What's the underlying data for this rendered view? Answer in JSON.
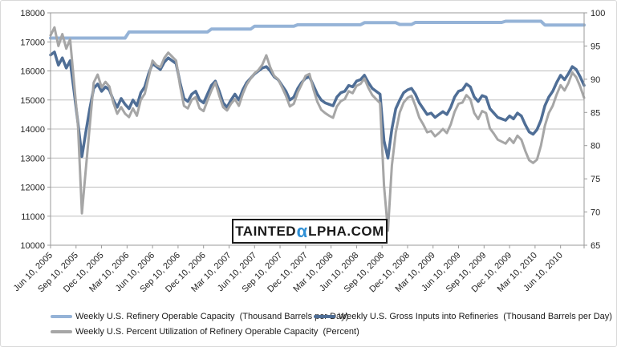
{
  "watermark": {
    "prefix": "TAINTED",
    "alpha": "α",
    "suffix": "LPHA.COM",
    "alpha_color": "#2e8fd5"
  },
  "colors": {
    "capacity_line": "#95b3d7",
    "inputs_line": "#4f6e96",
    "utilization_line": "#a6a6a6",
    "gridline": "#bdbdbd",
    "plot_border": "#9a9a9a",
    "axis_text": "#262626"
  },
  "chart_data": {
    "type": "line",
    "title": "",
    "grid": "horizontal",
    "legend_position": "bottom-left",
    "x_axis": {
      "start_date": "2005-06-10",
      "weeks_per_point": 2,
      "tick_every_weeks": 13,
      "tick_labels": [
        "Jun 10, 2005",
        "Sep 10, 2005",
        "Dec 10, 2005",
        "Mar 10, 2006",
        "Jun 10, 2006",
        "Sep 10, 2006",
        "Dec 10, 2006",
        "Mar 10, 2007",
        "Jun 10, 2007",
        "Sep 10, 2007",
        "Dec 10, 2007",
        "Mar 10, 2008",
        "Jun 10, 2008",
        "Sep 10, 2008",
        "Dec 10, 2008",
        "Mar 10, 2009",
        "Jun 10, 2009",
        "Sep 10, 2009",
        "Dec 10, 2009",
        "Mar 10, 2010",
        "Jun 10, 2010"
      ]
    },
    "left_axis": {
      "min": 10000,
      "max": 18000,
      "step": 1000,
      "tick_labels": [
        "18000",
        "17000",
        "16000",
        "15000",
        "14000",
        "13000",
        "12000",
        "11000",
        "10000"
      ]
    },
    "right_axis": {
      "min": 65,
      "max": 100,
      "step": 5,
      "tick_labels": [
        "100",
        "95",
        "90",
        "85",
        "80",
        "75",
        "70",
        "65"
      ]
    },
    "series": [
      {
        "name": "Weekly U.S. Refinery Operable Capacity  (Thousand Barrels per Day)",
        "axis": "left",
        "color": "#95b3d7",
        "stroke_width": 4,
        "values": [
          17130,
          17130,
          17130,
          17130,
          17130,
          17130,
          17130,
          17130,
          17130,
          17130,
          17130,
          17130,
          17130,
          17130,
          17130,
          17130,
          17130,
          17130,
          17130,
          17130,
          17340,
          17340,
          17340,
          17340,
          17340,
          17340,
          17340,
          17340,
          17340,
          17340,
          17340,
          17340,
          17340,
          17340,
          17340,
          17340,
          17340,
          17340,
          17340,
          17340,
          17340,
          17440,
          17440,
          17440,
          17440,
          17440,
          17440,
          17440,
          17440,
          17440,
          17440,
          17440,
          17540,
          17540,
          17540,
          17540,
          17540,
          17540,
          17540,
          17540,
          17540,
          17540,
          17540,
          17590,
          17590,
          17590,
          17590,
          17590,
          17590,
          17590,
          17590,
          17590,
          17590,
          17590,
          17590,
          17590,
          17590,
          17590,
          17590,
          17590,
          17660,
          17660,
          17660,
          17660,
          17660,
          17660,
          17660,
          17660,
          17660,
          17600,
          17600,
          17600,
          17600,
          17670,
          17670,
          17670,
          17670,
          17670,
          17670,
          17670,
          17670,
          17670,
          17670,
          17670,
          17670,
          17670,
          17670,
          17670,
          17670,
          17670,
          17670,
          17670,
          17670,
          17670,
          17670,
          17670,
          17710,
          17710,
          17710,
          17710,
          17710,
          17710,
          17710,
          17710,
          17710,
          17710,
          17580,
          17580,
          17580,
          17580,
          17580,
          17580,
          17580,
          17580,
          17580,
          17580,
          17580
        ]
      },
      {
        "name": "Weekly U.S. Gross Inputs into Refineries  (Thousand Barrels per Day)",
        "axis": "left",
        "color": "#4f6e96",
        "stroke_width": 3.5,
        "values": [
          16550,
          16650,
          16200,
          16450,
          16100,
          16350,
          15300,
          14200,
          13050,
          13900,
          14700,
          15400,
          15550,
          15300,
          15450,
          15350,
          15000,
          14750,
          15050,
          14850,
          14700,
          15000,
          14800,
          15250,
          15450,
          15900,
          16250,
          16150,
          16050,
          16300,
          16450,
          16350,
          16250,
          15600,
          15050,
          14950,
          15200,
          15300,
          15000,
          14900,
          15200,
          15500,
          15650,
          15300,
          14900,
          14750,
          15000,
          15200,
          15000,
          15350,
          15600,
          15750,
          15900,
          16000,
          16100,
          16150,
          16000,
          15800,
          15700,
          15500,
          15300,
          15000,
          15100,
          15400,
          15600,
          15750,
          15800,
          15500,
          15200,
          15000,
          14900,
          14850,
          14800,
          15100,
          15250,
          15300,
          15500,
          15450,
          15650,
          15700,
          15850,
          15600,
          15400,
          15300,
          15200,
          13600,
          13000,
          14000,
          14700,
          15000,
          15250,
          15350,
          15400,
          15200,
          14900,
          14700,
          14500,
          14550,
          14400,
          14500,
          14600,
          14500,
          14750,
          15100,
          15300,
          15350,
          15550,
          15450,
          15100,
          14950,
          15150,
          15100,
          14700,
          14550,
          14400,
          14350,
          14300,
          14450,
          14350,
          14550,
          14450,
          14150,
          13900,
          13820,
          13980,
          14300,
          14800,
          15100,
          15300,
          15600,
          15850,
          15700,
          15900,
          16150,
          16050,
          15800,
          15500
        ]
      },
      {
        "name": "Weekly U.S. Percent Utilization of Refinery Operable Capacity  (Percent)",
        "axis": "right",
        "color": "#a6a6a6",
        "stroke_width": 3,
        "values": [
          96.6,
          97.8,
          95.0,
          96.8,
          94.6,
          96.0,
          89.5,
          83.0,
          69.8,
          76.5,
          83.0,
          89.5,
          90.7,
          88.8,
          89.6,
          88.9,
          86.5,
          84.8,
          85.8,
          84.8,
          84.3,
          85.6,
          84.5,
          86.9,
          87.8,
          90.3,
          92.8,
          92.1,
          91.8,
          93.2,
          94.0,
          93.4,
          92.8,
          89.0,
          86.0,
          85.6,
          86.9,
          87.3,
          85.6,
          85.2,
          86.8,
          88.3,
          89.5,
          87.5,
          85.8,
          85.3,
          86.3,
          87.0,
          86.0,
          87.8,
          89.2,
          90.1,
          90.9,
          91.4,
          92.2,
          93.6,
          91.8,
          90.5,
          90.0,
          88.8,
          87.5,
          85.9,
          86.3,
          88.0,
          89.2,
          90.5,
          90.8,
          88.5,
          86.6,
          85.4,
          84.9,
          84.5,
          84.2,
          85.9,
          86.7,
          87.0,
          88.2,
          87.9,
          89.0,
          89.3,
          90.1,
          88.7,
          87.6,
          87.0,
          86.4,
          74.0,
          67.2,
          77.0,
          82.0,
          85.0,
          86.5,
          87.2,
          87.5,
          86.0,
          84.2,
          83.2,
          82.0,
          82.2,
          81.4,
          81.9,
          82.5,
          81.9,
          83.2,
          85.1,
          86.3,
          86.5,
          87.6,
          87.0,
          84.9,
          84.0,
          85.2,
          84.9,
          82.6,
          81.8,
          80.9,
          80.6,
          80.3,
          81.1,
          80.4,
          81.5,
          80.9,
          79.2,
          77.8,
          77.4,
          77.9,
          80.0,
          83.0,
          84.9,
          86.0,
          87.7,
          89.1,
          88.3,
          89.4,
          91.0,
          90.3,
          88.9,
          87.2
        ]
      }
    ]
  }
}
